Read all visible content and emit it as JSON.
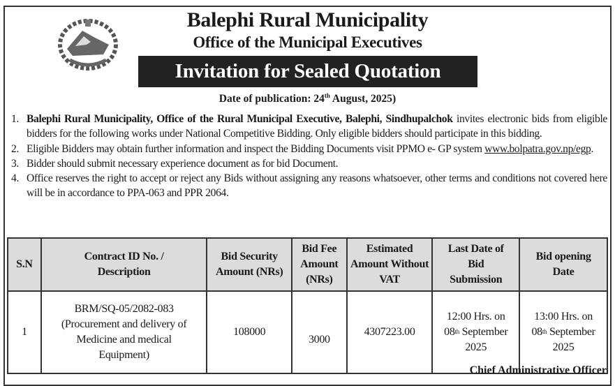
{
  "header": {
    "title": "Balephi Rural Municipality",
    "subtitle": "Office of the Municipal Executives",
    "notice_title": "Invitation for Sealed Quotation",
    "date_prefix": "Date of publication: 24",
    "date_sup": "th",
    "date_suffix": " August, 2025)"
  },
  "items": [
    {
      "n": "1.",
      "bold": "Balephi Rural Municipality, Office of the Rural Municipal Executive, Balephi, Sindhupalchok",
      "text": " invites electronic bids from eligible bidders for the following works under National Competitive Bidding. Only eligible bidders should participate in this bidding."
    },
    {
      "n": "2.",
      "text": "Eligible Bidders may obtain further information and inspect the Bidding Documents visit PPMO e- GP system ",
      "link": "www.bolpatra.gov.np/egp",
      "after": "."
    },
    {
      "n": "3.",
      "text": "Bidder should submit necessary experience document as for bid Document."
    },
    {
      "n": "4.",
      "text": "Office reserves the right to accept or reject any Bids without assigning any reasons whatsoever, other terms and conditions not covered here will be in accordance to PPA-063 and PPR 2064."
    }
  ],
  "table": {
    "headers": [
      "S.N",
      "Contract ID No. / Description",
      "Bid Security Amount (NRs)",
      "Bid Fee Amount (NRs)",
      "Estimated Amount Without VAT",
      "Last Date of Bid Submission",
      "Bid opening Date"
    ],
    "rows": [
      {
        "sn": "1",
        "contract_id": "BRM/SQ-05/2082-083",
        "description": "(Procurement and delivery of  Medicine and medical Equipment)",
        "bid_security": "108000",
        "bid_fee": "3000",
        "estimated": "4307223.00",
        "last_date_time": "12:00 Hrs. on",
        "last_date_day": "08",
        "last_date_sup": "th",
        "last_date_month": " September",
        "last_date_year": "2025",
        "open_time": "13:00 Hrs. on",
        "open_day": "08",
        "open_sup": "th",
        "open_month": " September",
        "open_year": "2025"
      }
    ]
  },
  "signature": "Chief Administrative Officer",
  "logo": {
    "icon": "nepal-emblem-icon"
  }
}
